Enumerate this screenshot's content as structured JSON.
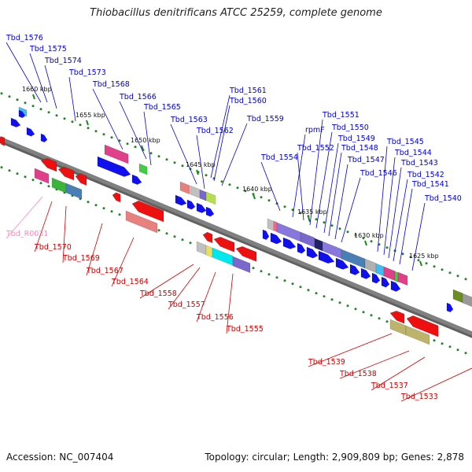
{
  "title": "Thiobacillus denitrificans ATCC 25259, complete genome",
  "accession": "Accession: NC_007404",
  "summary": "Topology: circular; Length: 2,909,809 bp; Genes: 2,878",
  "colors": {
    "upper_label": "#0000cc",
    "lower_label": "#cc0000",
    "rna_label": "#ff88bb",
    "backbone": "#808080",
    "tick_dot": "#1a8a1a"
  },
  "kbp_marks": [
    "1660 kbp",
    "1655 kbp",
    "1650 kbp",
    "1645 kbp",
    "1640 kbp",
    "1635 kbp",
    "1630 kbp",
    "1625 kbp"
  ],
  "upper_labels": [
    "Tbd_1576",
    "Tbd_1575",
    "Tbd_1574",
    "Tbd_1573",
    "Tbd_1568",
    "Tbd_1566",
    "Tbd_1565",
    "Tbd_1563",
    "Tbd_1562",
    "Tbd_1561",
    "Tbd_1560",
    "Tbd_1559",
    "Tbd_1554",
    "rpmF",
    "Tbd_1552",
    "Tbd_1551",
    "Tbd_1550",
    "Tbd_1549",
    "Tbd_1548",
    "Tbd_1547",
    "Tbd_1546",
    "Tbd_1545",
    "Tbd_1544",
    "Tbd_1543",
    "Tbd_1542",
    "Tbd_1541",
    "Tbd_1540"
  ],
  "lower_labels": [
    "Tbd_R0031",
    "Tbd_1570",
    "Tbd_1569",
    "Tbd_1567",
    "Tbd_1564",
    "Tbd_1558",
    "Tbd_1557",
    "Tbd_1556",
    "Tbd_1555",
    "Tbd_1539",
    "Tbd_1538",
    "Tbd_1537",
    "Tbd_1533"
  ]
}
